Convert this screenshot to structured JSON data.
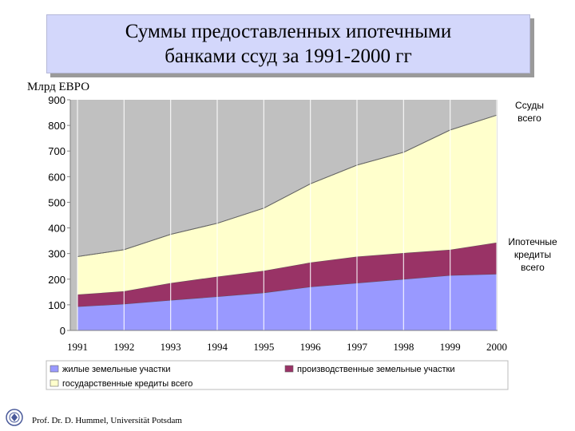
{
  "title": {
    "line1": "Суммы предоставленных ипотечными",
    "line2": "банками ссуд за 1991-2000 гг"
  },
  "unit_label": "Млрд ЕВРО",
  "side_labels": {
    "total_loans": [
      "Ссуды",
      "всего"
    ],
    "mortgage_credits": [
      "Ипотечные",
      "кредиты",
      "всего"
    ]
  },
  "footer": "Prof. Dr. D. Hummel, Universität Potsdam",
  "colors": {
    "plot_background": "#c0c0c0",
    "residential": "#9999ff",
    "industrial": "#993366",
    "state": "#ffffcc",
    "title_box": "#d3d7fb"
  },
  "chart_data": {
    "type": "area",
    "stacked": true,
    "x": [
      1991,
      1992,
      1993,
      1994,
      1995,
      1996,
      1997,
      1998,
      1999,
      2000
    ],
    "ylim": [
      0,
      900
    ],
    "yticks": [
      0,
      100,
      200,
      300,
      400,
      500,
      600,
      700,
      800,
      900
    ],
    "grid": false,
    "legend_position": "bottom",
    "series": [
      {
        "name": "жилые земельные участки",
        "color": "#9999ff",
        "values": [
          93,
          103,
          118,
          132,
          147,
          170,
          185,
          200,
          215,
          220
        ]
      },
      {
        "name": "производственные земельные участки",
        "color": "#993366",
        "values": [
          47,
          50,
          67,
          78,
          86,
          95,
          103,
          102,
          100,
          123
        ]
      },
      {
        "name": "государственные кредиты всего",
        "color": "#ffffcc",
        "values": [
          148,
          162,
          190,
          208,
          244,
          307,
          357,
          393,
          467,
          497
        ]
      }
    ],
    "top_boundary": [
      288,
      315,
      375,
      418,
      477,
      572,
      645,
      695,
      782,
      840
    ]
  }
}
